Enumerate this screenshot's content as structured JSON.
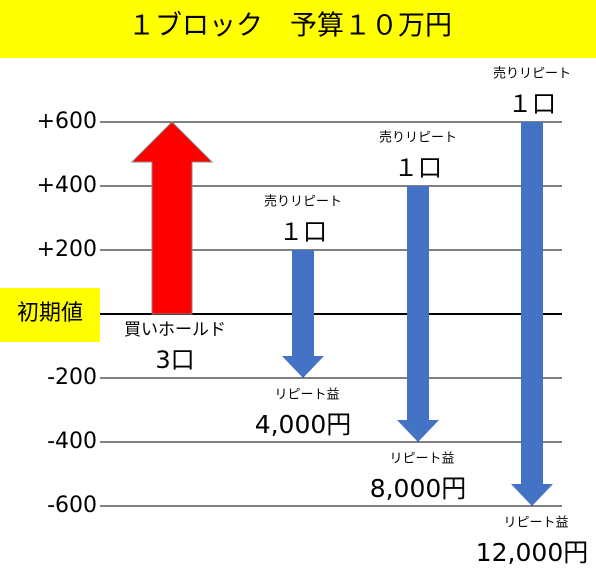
{
  "title": "１ブロック　予算１０万円",
  "baseline_label": "初期値",
  "ylim": [
    -600,
    600
  ],
  "yticks": [
    {
      "value": 600,
      "label": "+600"
    },
    {
      "value": 400,
      "label": "+400"
    },
    {
      "value": 200,
      "label": "+200"
    },
    0,
    -200,
    -400,
    -600
  ],
  "arrows": [
    {
      "from": 0,
      "to": 600,
      "color": "#ff0000",
      "bottom_label": "買いホールド",
      "bottom_value": "3口"
    },
    {
      "from": 200,
      "to": -200,
      "color": "#4472c4",
      "top_label": "売りリピート",
      "top_value": "１口",
      "bottom_label": "リピート益",
      "bottom_value": "4,000円"
    },
    {
      "from": 400,
      "to": -400,
      "color": "#4472c4",
      "top_label": "売りリピート",
      "top_value": "１口",
      "bottom_label": "リピート益",
      "bottom_value": "8,000円"
    },
    {
      "from": 600,
      "to": -600,
      "color": "#4472c4",
      "top_label": "売りリピート",
      "top_value": "１口",
      "bottom_label": "リピート益",
      "bottom_value": "12,000円"
    }
  ]
}
